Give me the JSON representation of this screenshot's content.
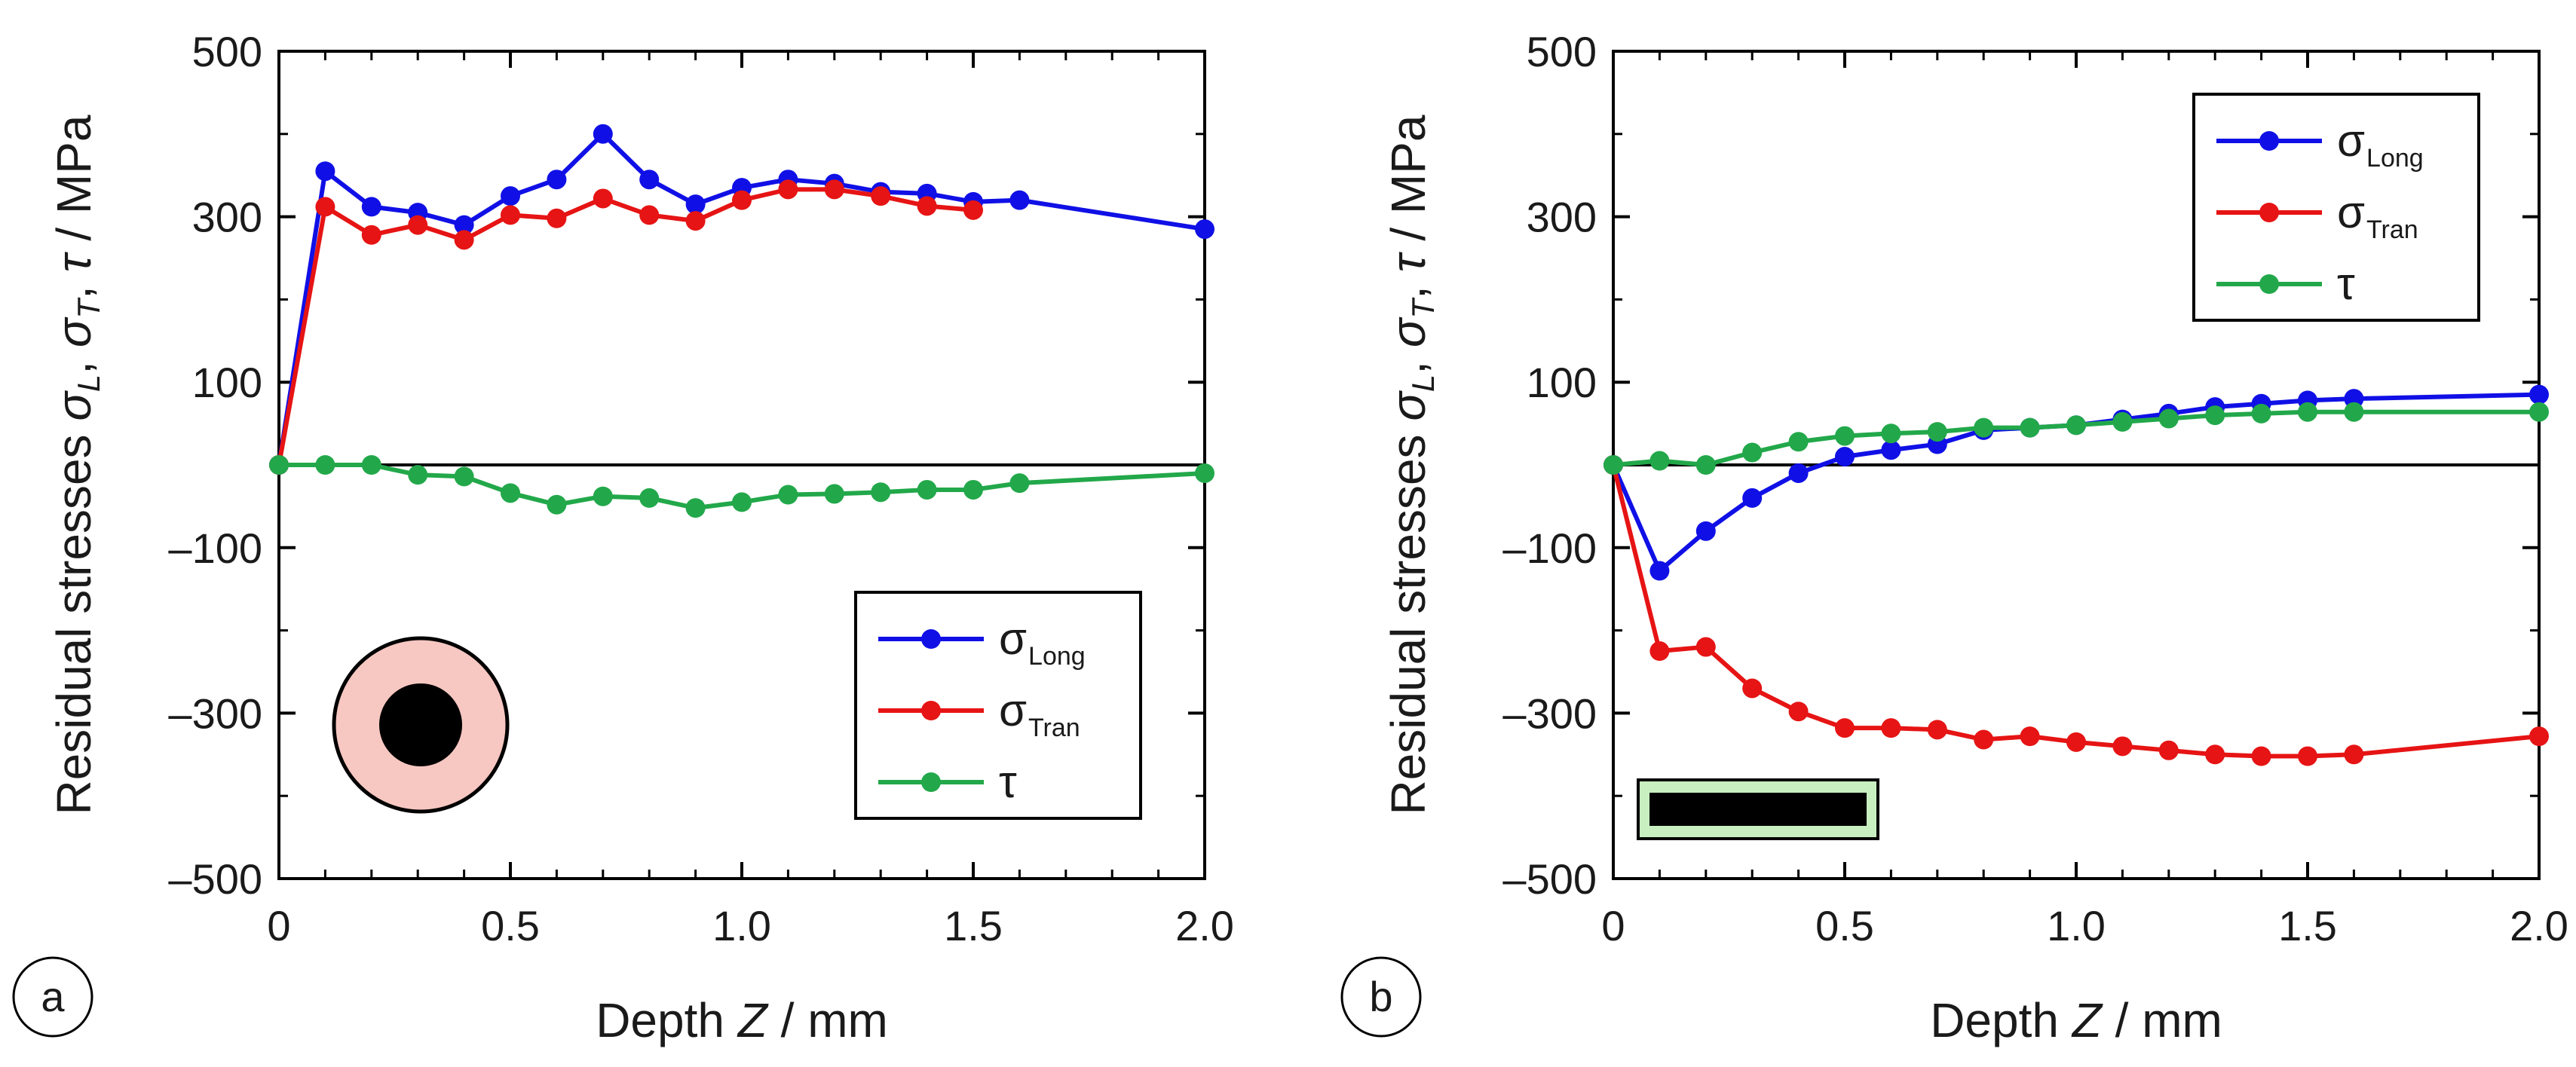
{
  "chart_data": [
    {
      "type": "line",
      "panel_label": "a",
      "xlabel_prefix": "Depth",
      "xlabel_var": "Z",
      "xlabel_unit": "/ mm",
      "ylabel_prefix": "Residual stresses",
      "ylabel_s1": "σ",
      "ylabel_s1_sub": "L",
      "ylabel_s2": "σ",
      "ylabel_s2_sub": "T",
      "ylabel_tau": "τ",
      "ylabel_unit": "/ MPa",
      "xlim": [
        0,
        2.0
      ],
      "ylim": [
        -500,
        500
      ],
      "xticks": [
        0,
        0.5,
        1.0,
        1.5,
        2.0
      ],
      "xtick_labels": [
        "0",
        "0.5",
        "1.0",
        "1.5",
        "2.0"
      ],
      "yticks": [
        500,
        300,
        100,
        -100,
        -300,
        -500
      ],
      "ytick_labels": [
        "500",
        "300",
        "100",
        "–100",
        "–300",
        "–500"
      ],
      "legend_position": "bottom-right",
      "inset": "circle",
      "series": [
        {
          "name": "σLong",
          "symbol": "σ",
          "subscript": "Long",
          "color": "#1010e6",
          "x": [
            0,
            0.1,
            0.2,
            0.3,
            0.4,
            0.5,
            0.6,
            0.7,
            0.8,
            0.9,
            1.0,
            1.1,
            1.2,
            1.3,
            1.4,
            1.5,
            1.6,
            2.0
          ],
          "y": [
            0,
            355,
            312,
            305,
            290,
            325,
            345,
            400,
            345,
            315,
            335,
            345,
            340,
            330,
            328,
            318,
            320,
            285
          ]
        },
        {
          "name": "σTran",
          "symbol": "σ",
          "subscript": "Tran",
          "color": "#e61414",
          "x": [
            0,
            0.1,
            0.2,
            0.3,
            0.4,
            0.5,
            0.6,
            0.7,
            0.8,
            0.9,
            1.0,
            1.1,
            1.2,
            1.3,
            1.4,
            1.5
          ],
          "y": [
            0,
            312,
            278,
            290,
            272,
            302,
            298,
            322,
            302,
            295,
            320,
            333,
            333,
            325,
            313,
            308
          ]
        },
        {
          "name": "τ",
          "symbol": "τ",
          "subscript": "",
          "color": "#22a84a",
          "x": [
            0,
            0.1,
            0.2,
            0.3,
            0.4,
            0.5,
            0.6,
            0.7,
            0.8,
            0.9,
            1.0,
            1.1,
            1.2,
            1.3,
            1.4,
            1.5,
            1.6,
            2.0
          ],
          "y": [
            0,
            0,
            0,
            -12,
            -14,
            -34,
            -48,
            -38,
            -40,
            -52,
            -45,
            -36,
            -35,
            -33,
            -30,
            -30,
            -22,
            -10
          ]
        }
      ]
    },
    {
      "type": "line",
      "panel_label": "b",
      "xlabel_prefix": "Depth",
      "xlabel_var": "Z",
      "xlabel_unit": "/ mm",
      "ylabel_prefix": "Residual stresses",
      "ylabel_s1": "σ",
      "ylabel_s1_sub": "L",
      "ylabel_s2": "σ",
      "ylabel_s2_sub": "T",
      "ylabel_tau": "τ",
      "ylabel_unit": "/ MPa",
      "xlim": [
        0,
        2.0
      ],
      "ylim": [
        -500,
        500
      ],
      "xticks": [
        0,
        0.5,
        1.0,
        1.5,
        2.0
      ],
      "xtick_labels": [
        "0",
        "0.5",
        "1.0",
        "1.5",
        "2.0"
      ],
      "yticks": [
        500,
        300,
        100,
        -100,
        -300,
        -500
      ],
      "ytick_labels": [
        "500",
        "300",
        "100",
        "–100",
        "–300",
        "–500"
      ],
      "legend_position": "top-right",
      "inset": "bar",
      "series": [
        {
          "name": "σLong",
          "symbol": "σ",
          "subscript": "Long",
          "color": "#1010e6",
          "x": [
            0,
            0.1,
            0.2,
            0.3,
            0.4,
            0.5,
            0.6,
            0.7,
            0.8,
            0.9,
            1.0,
            1.1,
            1.2,
            1.3,
            1.4,
            1.5,
            1.6,
            2.0
          ],
          "y": [
            0,
            -128,
            -80,
            -40,
            -10,
            10,
            18,
            25,
            42,
            45,
            48,
            55,
            62,
            70,
            74,
            78,
            80,
            85
          ]
        },
        {
          "name": "σTran",
          "symbol": "σ",
          "subscript": "Tran",
          "color": "#e61414",
          "x": [
            0,
            0.1,
            0.2,
            0.3,
            0.4,
            0.5,
            0.6,
            0.7,
            0.8,
            0.9,
            1.0,
            1.1,
            1.2,
            1.3,
            1.4,
            1.5,
            1.6,
            2.0
          ],
          "y": [
            0,
            -225,
            -220,
            -270,
            -298,
            -318,
            -318,
            -320,
            -332,
            -328,
            -335,
            -340,
            -345,
            -350,
            -352,
            -352,
            -350,
            -328
          ]
        },
        {
          "name": "τ",
          "symbol": "τ",
          "subscript": "",
          "color": "#22a84a",
          "x": [
            0,
            0.1,
            0.2,
            0.3,
            0.4,
            0.5,
            0.6,
            0.7,
            0.8,
            0.9,
            1.0,
            1.1,
            1.2,
            1.3,
            1.4,
            1.5,
            1.6,
            2.0
          ],
          "y": [
            0,
            5,
            0,
            15,
            28,
            35,
            38,
            40,
            45,
            45,
            48,
            52,
            56,
            60,
            62,
            64,
            64,
            64
          ]
        }
      ]
    }
  ]
}
